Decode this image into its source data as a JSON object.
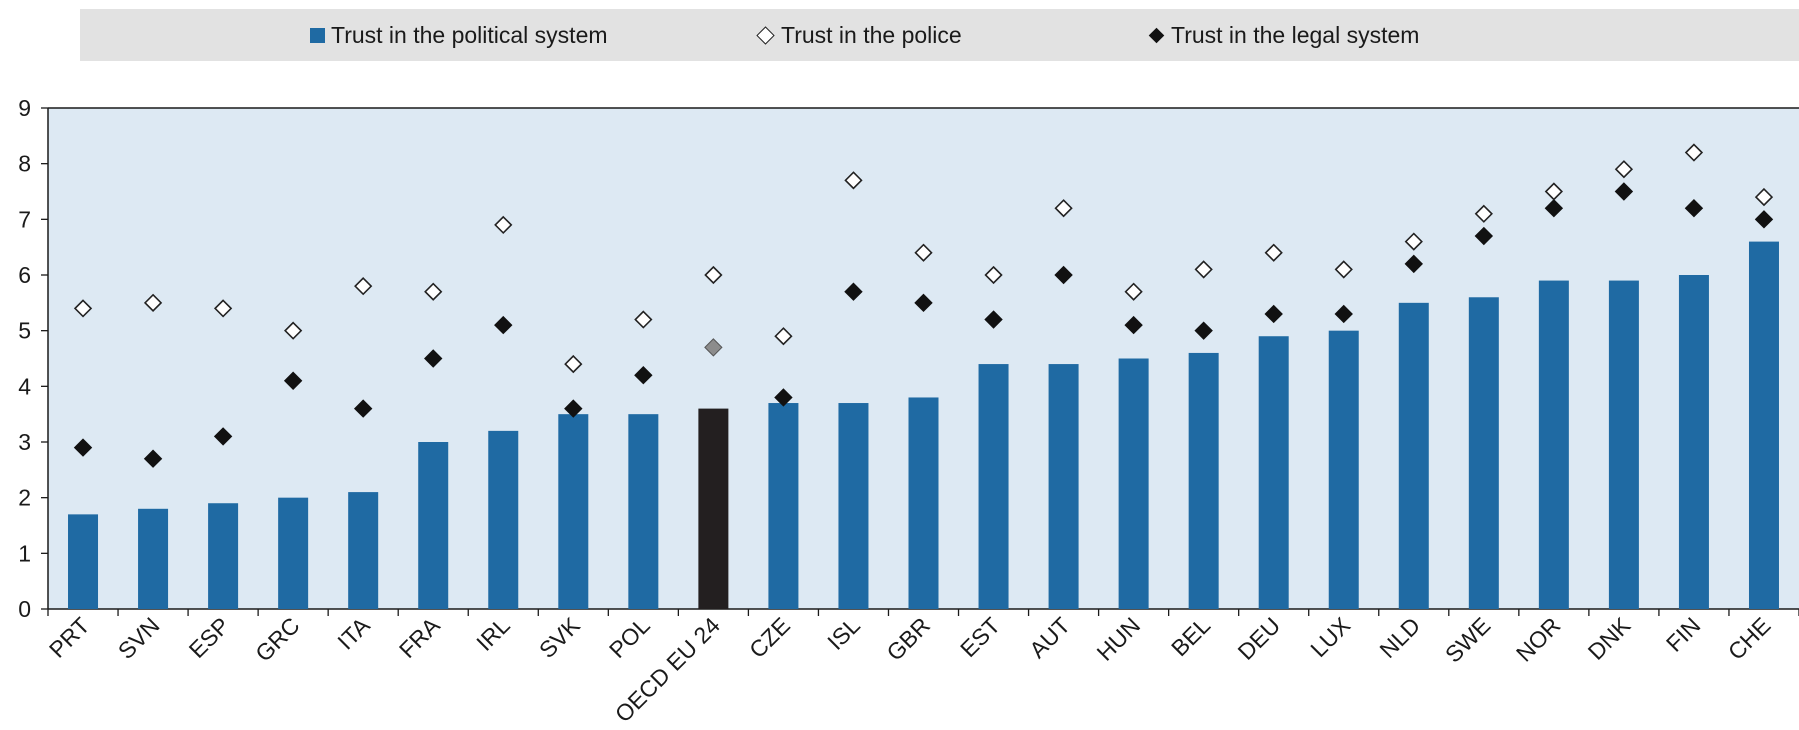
{
  "legend": {
    "items": [
      {
        "label": "Trust in the political system",
        "symbol": "square"
      },
      {
        "label": "Trust in the police",
        "symbol": "open-diamond"
      },
      {
        "label": "Trust in the legal system",
        "symbol": "filled-diamond"
      }
    ]
  },
  "colors": {
    "bar": "#1f6aa3",
    "highlight_bar": "#231f20",
    "plot_background": "#dde9f3",
    "highlight_marker": "#8c8c8c"
  },
  "chart_data": {
    "type": "bar",
    "categories": [
      "PRT",
      "SVN",
      "ESP",
      "GRC",
      "ITA",
      "FRA",
      "IRL",
      "SVK",
      "POL",
      "OECD EU 24",
      "CZE",
      "ISL",
      "GBR",
      "EST",
      "AUT",
      "HUN",
      "BEL",
      "DEU",
      "LUX",
      "NLD",
      "SWE",
      "NOR",
      "DNK",
      "FIN",
      "CHE"
    ],
    "highlight_category": "OECD EU 24",
    "series": [
      {
        "name": "Trust in the political system",
        "kind": "bar",
        "values": [
          1.7,
          1.8,
          1.9,
          2.0,
          2.1,
          3.0,
          3.2,
          3.5,
          3.5,
          3.6,
          3.7,
          3.7,
          3.8,
          4.4,
          4.4,
          4.5,
          4.6,
          4.9,
          5.0,
          5.5,
          5.6,
          5.9,
          5.9,
          6.0,
          6.6
        ]
      },
      {
        "name": "Trust in the police",
        "kind": "open-diamond",
        "values": [
          5.4,
          5.5,
          5.4,
          5.0,
          5.8,
          5.7,
          6.9,
          4.4,
          5.2,
          6.0,
          4.9,
          7.7,
          6.4,
          6.0,
          7.2,
          5.7,
          6.1,
          6.4,
          6.1,
          6.6,
          7.1,
          7.5,
          7.9,
          8.2,
          7.4
        ]
      },
      {
        "name": "Trust in the legal system",
        "kind": "filled-diamond",
        "values": [
          2.9,
          2.7,
          3.1,
          4.1,
          3.6,
          4.5,
          5.1,
          3.6,
          4.2,
          4.7,
          3.8,
          5.7,
          5.5,
          5.2,
          6.0,
          5.1,
          5.0,
          5.3,
          5.3,
          6.2,
          6.7,
          7.2,
          7.5,
          7.2,
          7.0
        ]
      }
    ],
    "ylim": [
      0,
      9
    ],
    "yticks": [
      0,
      1,
      2,
      3,
      4,
      5,
      6,
      7,
      8,
      9
    ],
    "grid": false,
    "legend_position": "top"
  }
}
